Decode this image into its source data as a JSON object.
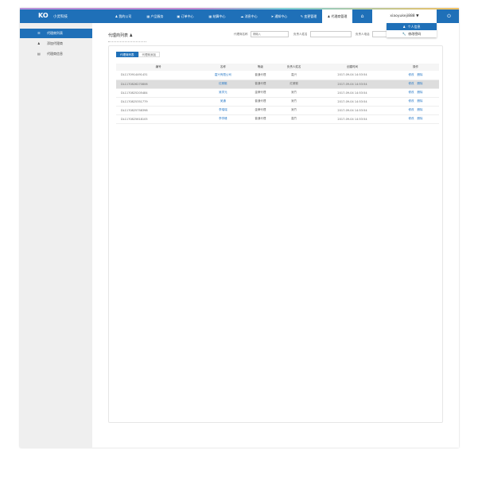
{
  "header": {
    "logo_mark": "KO",
    "logo_text": "小灵科技",
    "nav": [
      {
        "icon": "user-icon",
        "label": "我的公司"
      },
      {
        "icon": "grid-icon",
        "label": "产品服务"
      },
      {
        "icon": "order-icon",
        "label": "订单中心"
      },
      {
        "icon": "calendar-icon",
        "label": "结算中心"
      },
      {
        "icon": "cloud-icon",
        "label": "消息中心"
      },
      {
        "icon": "bullhorn-icon",
        "label": "通知中心"
      },
      {
        "icon": "edit-icon",
        "label": "变更管理"
      },
      {
        "icon": "user-icon",
        "label": "代理商管理"
      }
    ],
    "username": "xiaoyukeji888",
    "dropdown": [
      {
        "icon": "user-icon",
        "label": "个人信息"
      },
      {
        "icon": "wrench-icon",
        "label": "修改密码"
      }
    ]
  },
  "sidebar": {
    "items": [
      {
        "icon": "list-icon",
        "label": "代理商列表"
      },
      {
        "icon": "add-user-icon",
        "label": "添加代理商"
      },
      {
        "icon": "info-icon",
        "label": "代理商信息"
      }
    ]
  },
  "main": {
    "title": "代理商列表",
    "search": [
      {
        "label": "代理商名称",
        "placeholder": "请输入"
      },
      {
        "label": "负责人姓名",
        "placeholder": ""
      },
      {
        "label": "负责人电话",
        "placeholder": ""
      }
    ],
    "tabs": [
      "代理商列表",
      "代理商添加"
    ],
    "columns": [
      "编号",
      "名称",
      "等级",
      "负责人姓名",
      "创建时间",
      "操作"
    ],
    "rows": [
      {
        "id": "DL1170914491431",
        "name": "嘉兴有限公司",
        "level": "普通代理",
        "owner": "嘉兴",
        "time": "2017-09-04 14:53:54"
      },
      {
        "id": "DL1170826270806",
        "name": "红蜻蜓",
        "level": "普通代理",
        "owner": "红蜻蜓",
        "time": "2017-09-04 14:53:54"
      },
      {
        "id": "DL1170825205484",
        "name": "吴学元",
        "level": "金牌代理",
        "owner": "吴竹",
        "time": "2017-09-04 14:53:54"
      },
      {
        "id": "DL1170825351779",
        "name": "吴通",
        "level": "普通代理",
        "owner": "吴竹",
        "time": "2017-09-04 14:53:54"
      },
      {
        "id": "DL1170825758398",
        "name": "李瑞瑞",
        "level": "金牌代理",
        "owner": "吴竹",
        "time": "2017-09-04 14:53:54"
      },
      {
        "id": "DL1170825618105",
        "name": "李学峰",
        "level": "普通代理",
        "owner": "嘉竹",
        "time": "2017-09-04 14:53:54"
      }
    ],
    "actions": [
      "修改",
      "删除"
    ]
  },
  "colors": {
    "primary": "#1f70b8",
    "sidebar": "#efefef"
  }
}
